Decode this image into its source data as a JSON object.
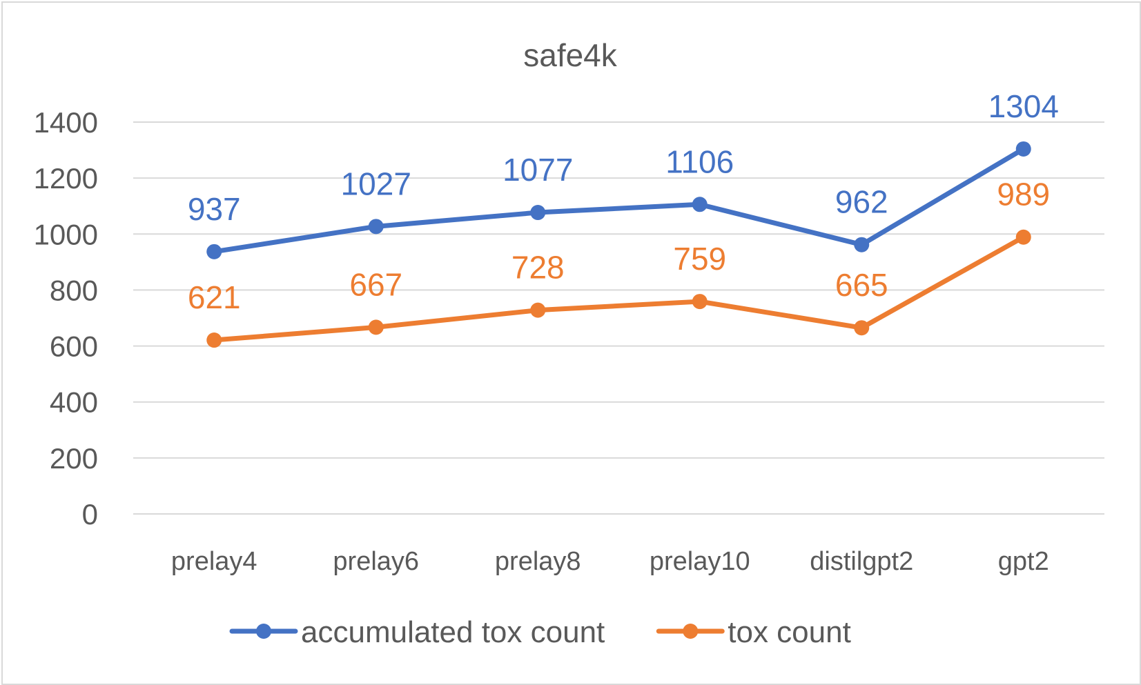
{
  "chart_data": {
    "type": "line",
    "title": "safe4k",
    "categories": [
      "prelay4",
      "prelay6",
      "prelay8",
      "prelay10",
      "distilgpt2",
      "gpt2"
    ],
    "ylim": [
      0,
      1400
    ],
    "yticks": [
      0,
      200,
      400,
      600,
      800,
      1000,
      1200,
      1400
    ],
    "grid": true,
    "legend": "bottom",
    "xlabel": "",
    "ylabel": "",
    "series": [
      {
        "name": "accumulated tox count",
        "color": "#4472c4",
        "values": [
          937,
          1027,
          1077,
          1106,
          962,
          1304
        ]
      },
      {
        "name": "tox count",
        "color": "#ed7d31",
        "values": [
          621,
          667,
          728,
          759,
          665,
          989
        ]
      }
    ]
  }
}
